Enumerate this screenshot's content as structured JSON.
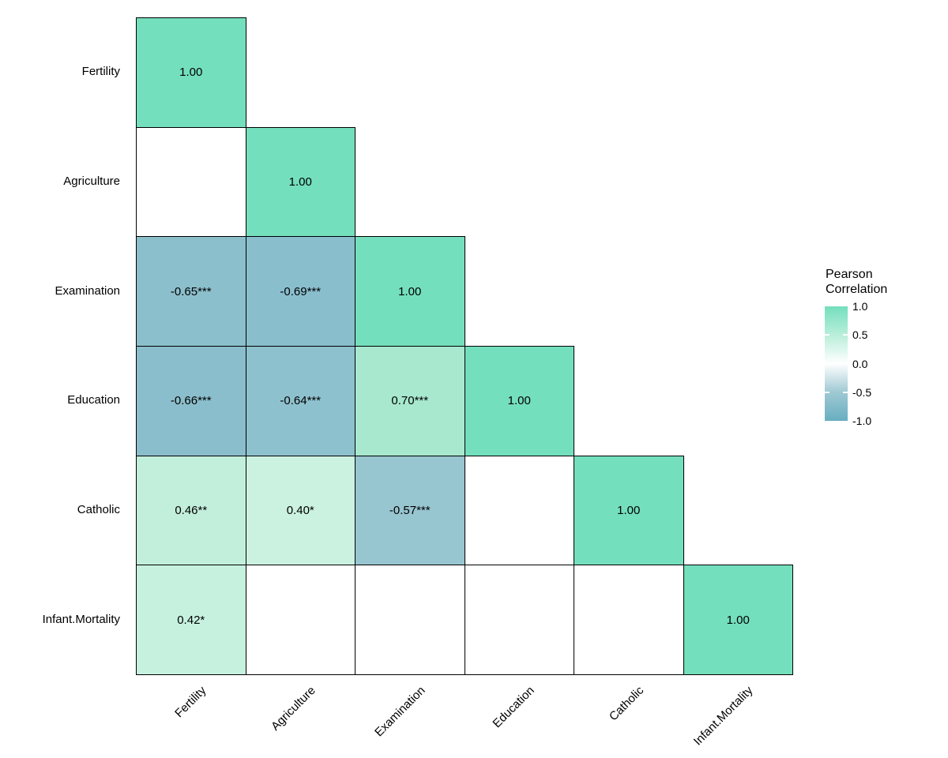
{
  "figure": {
    "background": "#FFFFFF",
    "cell_border_color": "#000000",
    "text_color": "#000000"
  },
  "chart_data": {
    "type": "heatmap",
    "subtype": "lower-triangle-correlation-matrix",
    "variables": [
      "Fertility",
      "Agriculture",
      "Examination",
      "Education",
      "Catholic",
      "Infant.Mortality"
    ],
    "x_axis_labels": [
      "Fertility",
      "Agriculture",
      "Examination",
      "Education",
      "Catholic",
      "Infant.Mortality"
    ],
    "y_axis_labels": [
      "Fertility",
      "Agriculture",
      "Examination",
      "Education",
      "Catholic",
      "Infant.Mortality"
    ],
    "significance_note": "stars shown in cell labels; blank white cells carry no printed value",
    "cells": [
      {
        "row": "Fertility",
        "col": "Fertility",
        "label": "1.00",
        "value": 1.0,
        "color": "#74DFBD"
      },
      {
        "row": "Agriculture",
        "col": "Fertility",
        "label": "",
        "value": null,
        "color": "#FFFFFF"
      },
      {
        "row": "Agriculture",
        "col": "Agriculture",
        "label": "1.00",
        "value": 1.0,
        "color": "#74DFBD"
      },
      {
        "row": "Examination",
        "col": "Fertility",
        "label": "-0.65***",
        "value": -0.65,
        "color": "#8CBFCC"
      },
      {
        "row": "Examination",
        "col": "Agriculture",
        "label": "-0.69***",
        "value": -0.69,
        "color": "#89BECD"
      },
      {
        "row": "Examination",
        "col": "Examination",
        "label": "1.00",
        "value": 1.0,
        "color": "#74DFBD"
      },
      {
        "row": "Education",
        "col": "Fertility",
        "label": "-0.66***",
        "value": -0.66,
        "color": "#8BBECC"
      },
      {
        "row": "Education",
        "col": "Agriculture",
        "label": "-0.64***",
        "value": -0.64,
        "color": "#8EC1CE"
      },
      {
        "row": "Education",
        "col": "Examination",
        "label": "0.70***",
        "value": 0.7,
        "color": "#A7E8CF"
      },
      {
        "row": "Education",
        "col": "Education",
        "label": "1.00",
        "value": 1.0,
        "color": "#74DFBD"
      },
      {
        "row": "Catholic",
        "col": "Fertility",
        "label": "0.46**",
        "value": 0.46,
        "color": "#C2EFDC"
      },
      {
        "row": "Catholic",
        "col": "Agriculture",
        "label": "0.40*",
        "value": 0.4,
        "color": "#CBF2E1"
      },
      {
        "row": "Catholic",
        "col": "Examination",
        "label": "-0.57***",
        "value": -0.57,
        "color": "#97C5D0"
      },
      {
        "row": "Catholic",
        "col": "Education",
        "label": "",
        "value": null,
        "color": "#FFFFFF"
      },
      {
        "row": "Catholic",
        "col": "Catholic",
        "label": "1.00",
        "value": 1.0,
        "color": "#74DFBD"
      },
      {
        "row": "Infant.Mortality",
        "col": "Fertility",
        "label": "0.42*",
        "value": 0.42,
        "color": "#C6F1DF"
      },
      {
        "row": "Infant.Mortality",
        "col": "Agriculture",
        "label": "",
        "value": null,
        "color": "#FFFFFF"
      },
      {
        "row": "Infant.Mortality",
        "col": "Examination",
        "label": "",
        "value": null,
        "color": "#FFFFFF"
      },
      {
        "row": "Infant.Mortality",
        "col": "Education",
        "label": "",
        "value": null,
        "color": "#FFFFFF"
      },
      {
        "row": "Infant.Mortality",
        "col": "Catholic",
        "label": "",
        "value": null,
        "color": "#FFFFFF"
      },
      {
        "row": "Infant.Mortality",
        "col": "Infant.Mortality",
        "label": "1.00",
        "value": 1.0,
        "color": "#74DFBD"
      }
    ],
    "legend": {
      "title_line1": "Pearson",
      "title_line2": "Correlation",
      "tick_labels": [
        "1.0",
        "0.5",
        "0.0",
        "-0.5",
        "-1.0"
      ],
      "tick_values": [
        1.0,
        0.5,
        0.0,
        -0.5,
        -1.0
      ],
      "range": [
        -1.0,
        1.0
      ],
      "gradient_stops": [
        "#74DFBD",
        "#B9EEDB",
        "#FFFFFF",
        "#9FC9D3",
        "#68AEC1"
      ],
      "position": "right"
    }
  }
}
